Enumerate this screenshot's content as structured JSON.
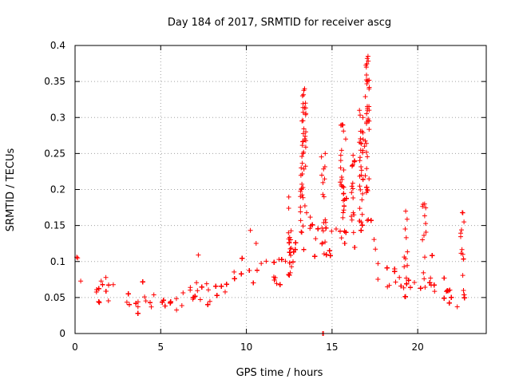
{
  "chart_data": {
    "type": "scatter",
    "title": "Day 184 of 2017, SRMTID for receiver ascg",
    "xlabel": "GPS time / hours",
    "ylabel": "SRMTID / TECUs",
    "xlim": [
      0,
      24
    ],
    "ylim": [
      0,
      0.4
    ],
    "x_ticks": [
      0,
      5,
      10,
      15,
      20
    ],
    "x_tick_labels": [
      "0",
      "5",
      "10",
      "15",
      "20"
    ],
    "y_ticks": [
      0,
      0.05,
      0.1,
      0.15,
      0.2,
      0.25,
      0.3,
      0.35,
      0.4
    ],
    "y_tick_labels": [
      "0",
      "0.05",
      "0.1",
      "0.15",
      "0.2",
      "0.25",
      "0.3",
      "0.35",
      "0.4"
    ],
    "grid": true,
    "marker": "+",
    "color": "#ff0000",
    "x_range": [
      0,
      22.8
    ],
    "envelope": [
      {
        "x": 0.0,
        "mean": 0.065,
        "spread": 0.03
      },
      {
        "x": 1.0,
        "mean": 0.062,
        "spread": 0.035
      },
      {
        "x": 2.0,
        "mean": 0.055,
        "spread": 0.03
      },
      {
        "x": 3.0,
        "mean": 0.05,
        "spread": 0.025
      },
      {
        "x": 4.0,
        "mean": 0.045,
        "spread": 0.025
      },
      {
        "x": 5.0,
        "mean": 0.043,
        "spread": 0.025
      },
      {
        "x": 6.0,
        "mean": 0.045,
        "spread": 0.025
      },
      {
        "x": 7.0,
        "mean": 0.05,
        "spread": 0.03
      },
      {
        "x": 8.0,
        "mean": 0.058,
        "spread": 0.03
      },
      {
        "x": 9.0,
        "mean": 0.07,
        "spread": 0.03
      },
      {
        "x": 10.0,
        "mean": 0.085,
        "spread": 0.03
      },
      {
        "x": 11.0,
        "mean": 0.09,
        "spread": 0.035
      },
      {
        "x": 12.0,
        "mean": 0.075,
        "spread": 0.04
      },
      {
        "x": 13.0,
        "mean": 0.1,
        "spread": 0.05
      },
      {
        "x": 13.5,
        "mean": 0.14,
        "spread": 0.07
      },
      {
        "x": 14.0,
        "mean": 0.13,
        "spread": 0.06
      },
      {
        "x": 14.5,
        "mean": 0.12,
        "spread": 0.06
      },
      {
        "x": 15.0,
        "mean": 0.12,
        "spread": 0.06
      },
      {
        "x": 16.0,
        "mean": 0.15,
        "spread": 0.07
      },
      {
        "x": 17.0,
        "mean": 0.17,
        "spread": 0.08
      },
      {
        "x": 17.5,
        "mean": 0.13,
        "spread": 0.05
      },
      {
        "x": 18.0,
        "mean": 0.07,
        "spread": 0.025
      },
      {
        "x": 19.0,
        "mean": 0.065,
        "spread": 0.03
      },
      {
        "x": 20.0,
        "mean": 0.07,
        "spread": 0.035
      },
      {
        "x": 21.0,
        "mean": 0.06,
        "spread": 0.03
      },
      {
        "x": 22.0,
        "mean": 0.05,
        "spread": 0.025
      },
      {
        "x": 22.8,
        "mean": 0.045,
        "spread": 0.02
      }
    ],
    "notable_points": [
      {
        "x": 13.4,
        "y": 0.34
      },
      {
        "x": 13.45,
        "y": 0.32
      },
      {
        "x": 13.3,
        "y": 0.25
      },
      {
        "x": 13.2,
        "y": 0.23
      },
      {
        "x": 14.6,
        "y": 0.25
      },
      {
        "x": 14.4,
        "y": 0.22
      },
      {
        "x": 15.6,
        "y": 0.29
      },
      {
        "x": 15.8,
        "y": 0.27
      },
      {
        "x": 15.5,
        "y": 0.23
      },
      {
        "x": 16.6,
        "y": 0.31
      },
      {
        "x": 16.8,
        "y": 0.3
      },
      {
        "x": 17.0,
        "y": 0.37
      },
      {
        "x": 17.1,
        "y": 0.385
      },
      {
        "x": 17.05,
        "y": 0.35
      },
      {
        "x": 16.9,
        "y": 0.26
      },
      {
        "x": 16.3,
        "y": 0.24
      },
      {
        "x": 16.7,
        "y": 0.22
      },
      {
        "x": 19.3,
        "y": 0.17
      },
      {
        "x": 20.4,
        "y": 0.18
      },
      {
        "x": 22.6,
        "y": 0.168
      },
      {
        "x": 22.7,
        "y": 0.155
      },
      {
        "x": 0.1,
        "y": 0.106
      },
      {
        "x": 0.15,
        "y": 0.105
      },
      {
        "x": 14.45,
        "y": 0.0
      },
      {
        "x": 14.5,
        "y": 0.0
      }
    ]
  }
}
